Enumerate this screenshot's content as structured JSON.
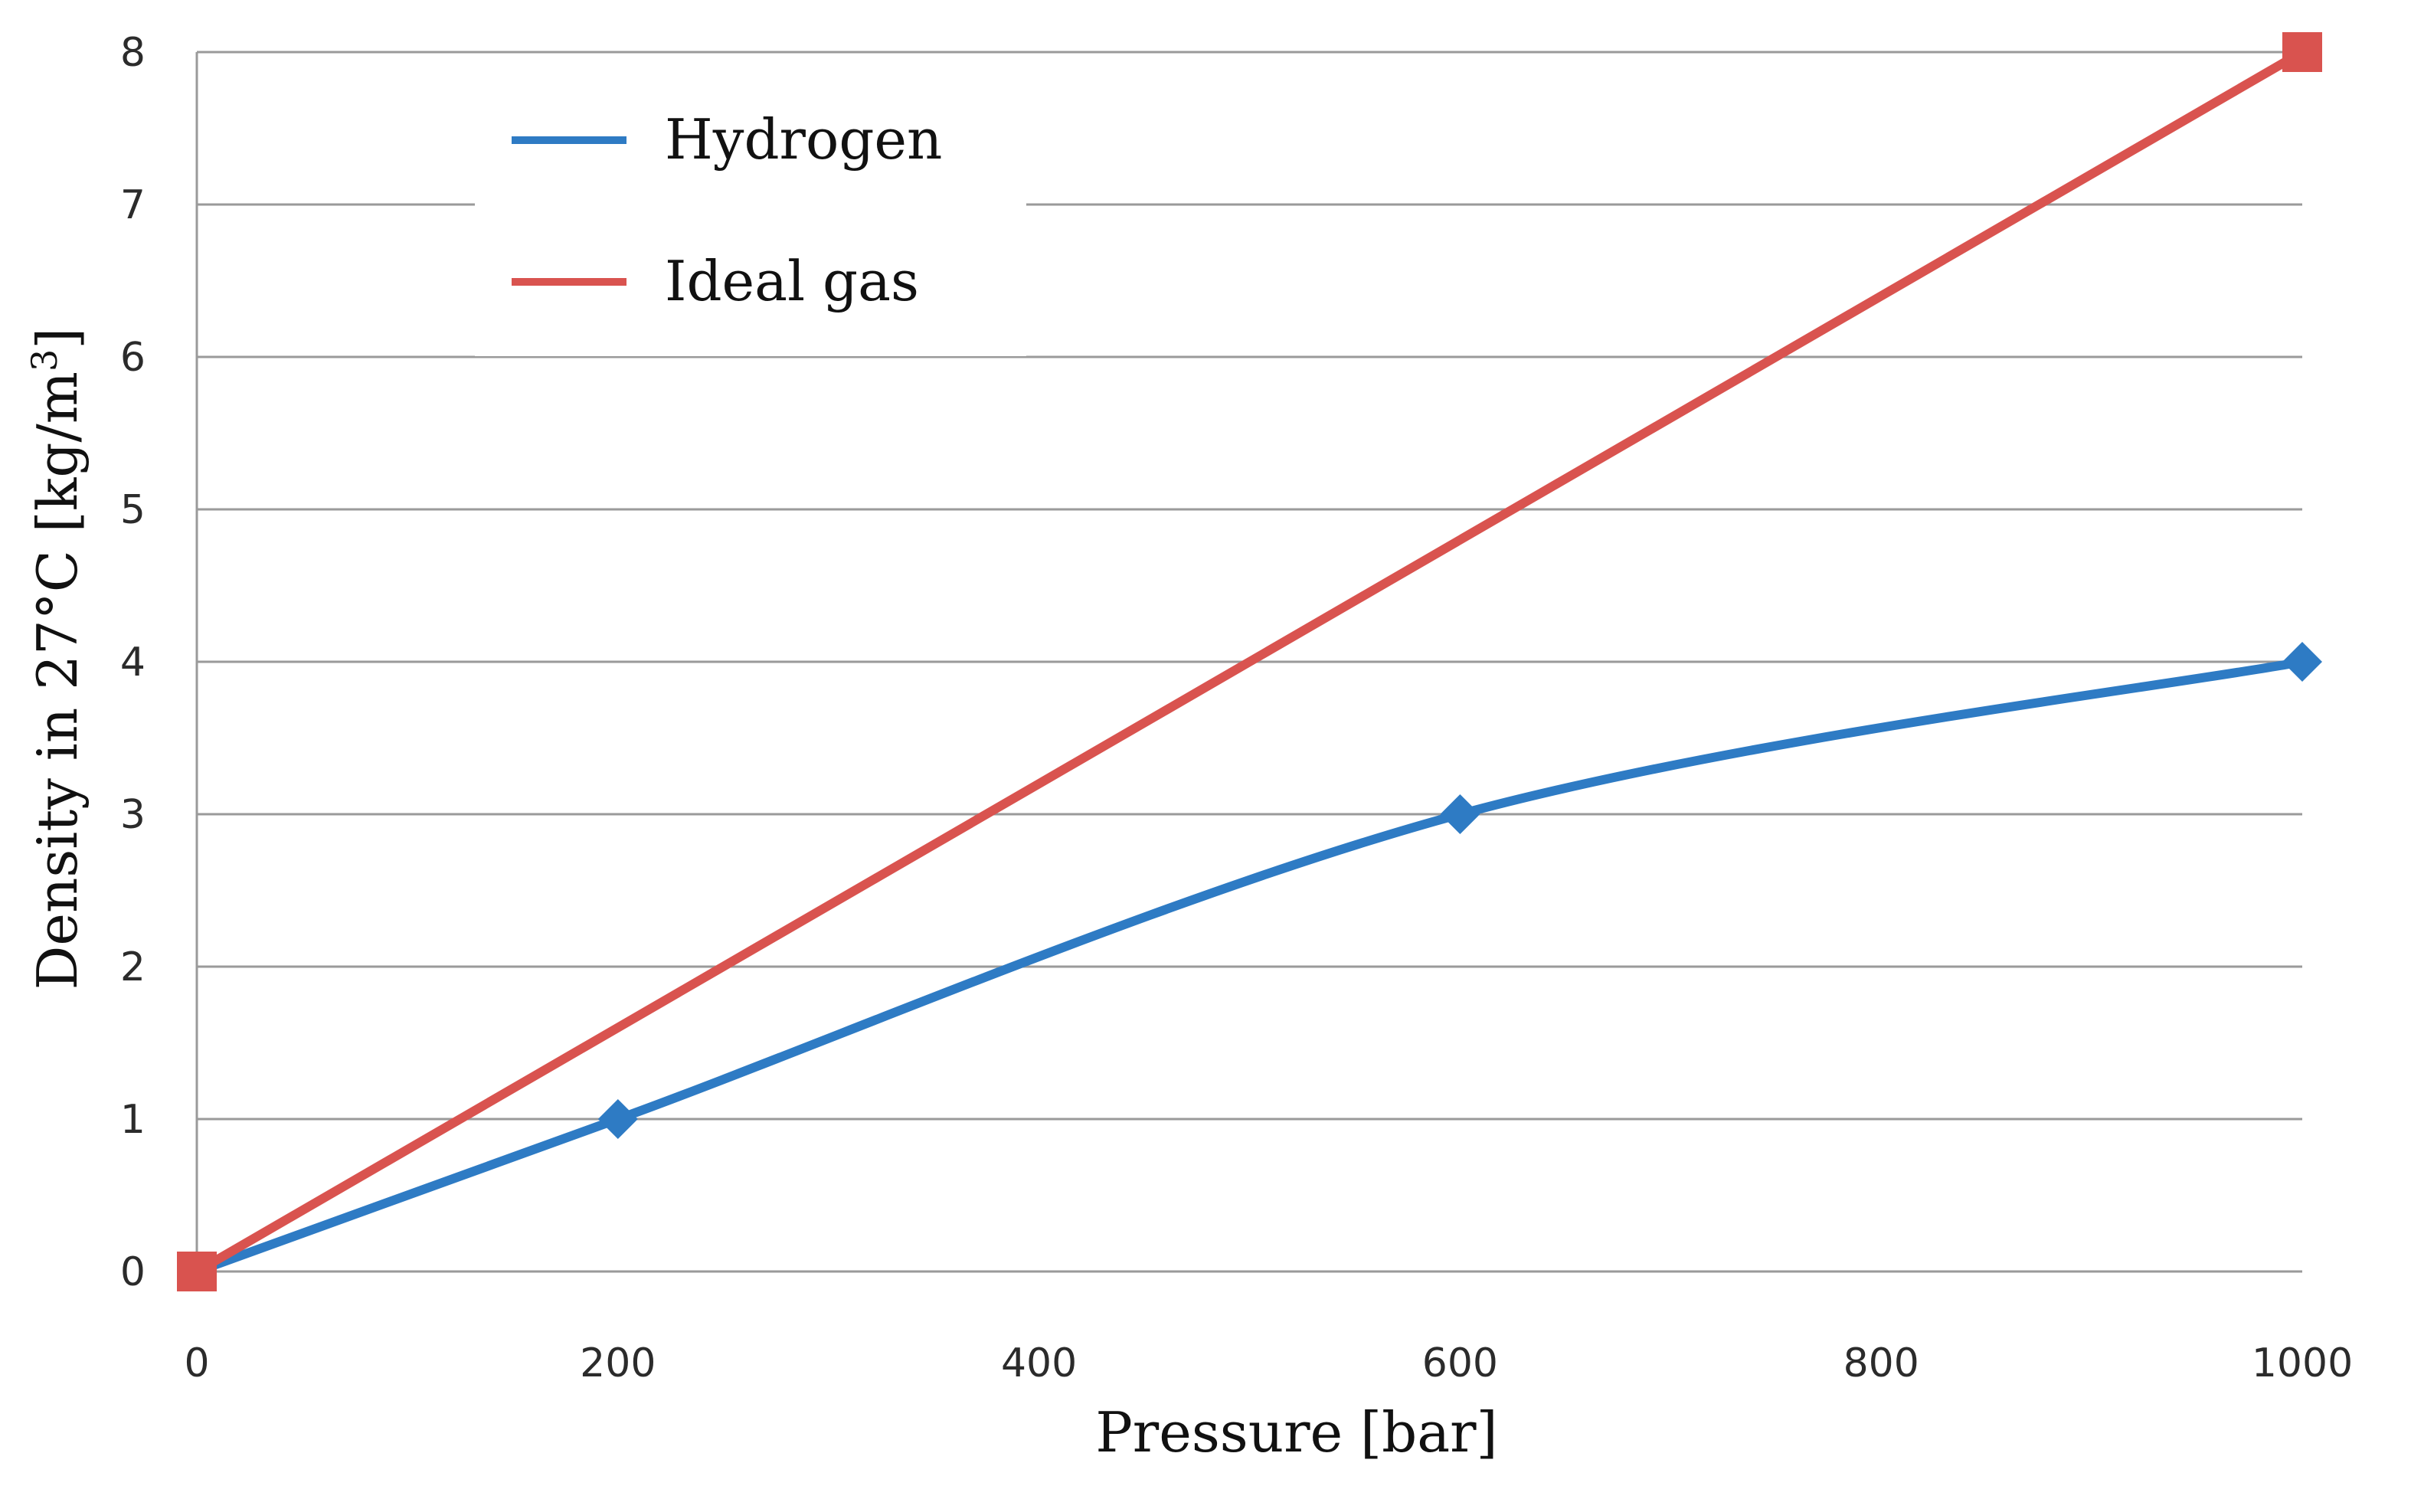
{
  "chart_data": {
    "type": "line",
    "title": "",
    "xlabel": "Pressure [bar]",
    "ylabel_prefix": "Density in 27°C [kg/m",
    "ylabel_sup": "3",
    "ylabel_suffix": "]",
    "xlim": [
      0,
      1000
    ],
    "ylim": [
      0,
      8
    ],
    "x_ticks": [
      0,
      200,
      400,
      600,
      800,
      1000
    ],
    "x_tick_labels": [
      "0",
      "200",
      "400",
      "600",
      "800",
      "1000"
    ],
    "y_ticks": [
      0,
      1,
      2,
      3,
      4,
      5,
      6,
      7,
      8
    ],
    "y_tick_labels": [
      "0",
      "1",
      "2",
      "3",
      "4",
      "5",
      "6",
      "7",
      "8"
    ],
    "grid": "horizontal",
    "legend_position": "top-left",
    "series": [
      {
        "name": "Hydrogen",
        "color": "#2e7bc4",
        "marker": "diamond",
        "x": [
          0,
          200,
          600,
          1000
        ],
        "y": [
          0,
          1,
          3,
          4
        ]
      },
      {
        "name": "Ideal gas",
        "color": "#d9534f",
        "marker": "square",
        "x": [
          0,
          1000
        ],
        "y": [
          0,
          8
        ]
      }
    ]
  }
}
